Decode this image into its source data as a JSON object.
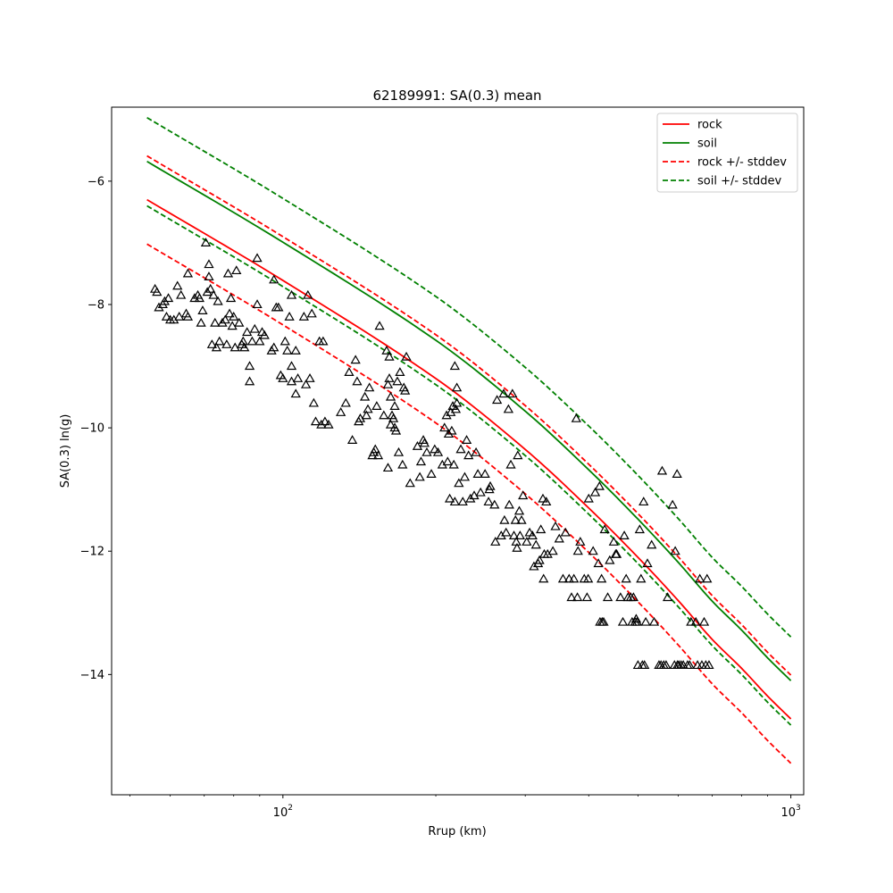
{
  "chart_data": {
    "type": "scatter",
    "title": "62189991: SA(0.3) mean",
    "xlabel": "Rrup (km)",
    "ylabel": "SA(0.3) ln(g)",
    "xscale": "log",
    "xlim": [
      46,
      1060
    ],
    "ylim": [
      -15.95,
      -4.8
    ],
    "x_major_ticks": [
      100,
      1000
    ],
    "x_major_tick_labels": [
      {
        "base": "10",
        "exp": "2"
      },
      {
        "base": "10",
        "exp": "3"
      }
    ],
    "y_ticks": [
      -6,
      -8,
      -10,
      -12,
      -14
    ],
    "y_tick_labels": [
      "−6",
      "−8",
      "−10",
      "−12",
      "−14"
    ],
    "legend": {
      "placement": "top-right",
      "entries": [
        {
          "label": "rock",
          "color": "#ff0000",
          "style": "solid"
        },
        {
          "label": "soil",
          "color": "#008000",
          "style": "solid"
        },
        {
          "label": "rock +/- stddev",
          "color": "#ff0000",
          "style": "dashed"
        },
        {
          "label": "soil +/- stddev",
          "color": "#008000",
          "style": "dashed"
        }
      ]
    },
    "curve_x": [
      54,
      100,
      200,
      300,
      400,
      500,
      600,
      700,
      800,
      900,
      1000
    ],
    "lines": [
      {
        "key": "rock",
        "color": "#ff0000",
        "style": "solid",
        "y": [
          -6.3,
          -7.61,
          -9.2,
          -10.35,
          -11.3,
          -12.1,
          -12.8,
          -13.43,
          -13.9,
          -14.35,
          -14.72
        ]
      },
      {
        "key": "rock_plus",
        "color": "#ff0000",
        "style": "dashed",
        "y": [
          -5.59,
          -6.9,
          -8.49,
          -9.64,
          -10.59,
          -11.39,
          -12.09,
          -12.72,
          -13.19,
          -13.64,
          -14.01
        ]
      },
      {
        "key": "rock_minus",
        "color": "#ff0000",
        "style": "dashed",
        "y": [
          -7.02,
          -8.33,
          -9.92,
          -11.07,
          -12.02,
          -12.82,
          -13.52,
          -14.15,
          -14.62,
          -15.07,
          -15.44
        ]
      },
      {
        "key": "soil",
        "color": "#008000",
        "style": "solid",
        "y": [
          -5.68,
          -6.99,
          -8.58,
          -9.73,
          -10.68,
          -11.48,
          -12.18,
          -12.81,
          -13.28,
          -13.73,
          -14.1
        ]
      },
      {
        "key": "soil_plus",
        "color": "#008000",
        "style": "dashed",
        "y": [
          -4.97,
          -6.28,
          -7.87,
          -9.02,
          -9.97,
          -10.77,
          -11.47,
          -12.1,
          -12.57,
          -13.02,
          -13.39
        ]
      },
      {
        "key": "soil_minus",
        "color": "#008000",
        "style": "dashed",
        "y": [
          -6.4,
          -7.71,
          -9.3,
          -10.45,
          -11.4,
          -12.2,
          -12.9,
          -13.53,
          -14.0,
          -14.45,
          -14.82
        ]
      }
    ],
    "observations": {
      "marker": "triangle",
      "color": "#000000",
      "points": [
        [
          56,
          -7.75
        ],
        [
          56.5,
          -7.8
        ],
        [
          57,
          -8.05
        ],
        [
          58,
          -8.0
        ],
        [
          58.5,
          -7.95
        ],
        [
          59,
          -8.2
        ],
        [
          59.5,
          -7.9
        ],
        [
          60,
          -8.25
        ],
        [
          61,
          -8.25
        ],
        [
          62,
          -7.7
        ],
        [
          62.5,
          -8.2
        ],
        [
          63,
          -7.85
        ],
        [
          64.5,
          -8.15
        ],
        [
          65,
          -8.2
        ],
        [
          65,
          -7.5
        ],
        [
          67,
          -7.9
        ],
        [
          68,
          -7.85
        ],
        [
          68.5,
          -7.9
        ],
        [
          69,
          -8.3
        ],
        [
          69.5,
          -8.1
        ],
        [
          70.5,
          -7.0
        ],
        [
          71,
          -7.8
        ],
        [
          71.5,
          -7.35
        ],
        [
          71.5,
          -7.55
        ],
        [
          72,
          -7.75
        ],
        [
          72.5,
          -8.65
        ],
        [
          73,
          -7.85
        ],
        [
          73.5,
          -8.3
        ],
        [
          74,
          -8.7
        ],
        [
          74.5,
          -7.95
        ],
        [
          75,
          -8.6
        ],
        [
          76,
          -8.3
        ],
        [
          77,
          -8.25
        ],
        [
          77.5,
          -8.65
        ],
        [
          78,
          -7.5
        ],
        [
          78.5,
          -8.15
        ],
        [
          79,
          -7.9
        ],
        [
          79.5,
          -8.35
        ],
        [
          80,
          -8.2
        ],
        [
          80.5,
          -8.7
        ],
        [
          81,
          -7.45
        ],
        [
          82,
          -8.3
        ],
        [
          83,
          -8.65
        ],
        [
          83.5,
          -8.6
        ],
        [
          84,
          -8.7
        ],
        [
          85,
          -8.45
        ],
        [
          86,
          -9.0
        ],
        [
          86,
          -9.25
        ],
        [
          87,
          -8.6
        ],
        [
          88,
          -8.4
        ],
        [
          89,
          -7.25
        ],
        [
          89,
          -8.0
        ],
        [
          90,
          -8.6
        ],
        [
          91,
          -8.45
        ],
        [
          92,
          -8.5
        ],
        [
          95,
          -8.75
        ],
        [
          96,
          -7.6
        ],
        [
          96,
          -8.7
        ],
        [
          97,
          -8.05
        ],
        [
          98,
          -8.05
        ],
        [
          99,
          -9.15
        ],
        [
          100,
          -9.2
        ],
        [
          101,
          -8.6
        ],
        [
          102,
          -8.75
        ],
        [
          103,
          -8.2
        ],
        [
          104,
          -9.0
        ],
        [
          104,
          -9.25
        ],
        [
          104,
          -7.85
        ],
        [
          106,
          -8.75
        ],
        [
          106,
          -9.45
        ],
        [
          107,
          -9.2
        ],
        [
          110,
          -8.2
        ],
        [
          111,
          -9.3
        ],
        [
          112,
          -7.85
        ],
        [
          113,
          -9.2
        ],
        [
          114,
          -8.15
        ],
        [
          115,
          -9.6
        ],
        [
          116,
          -9.9
        ],
        [
          118,
          -8.6
        ],
        [
          119,
          -9.95
        ],
        [
          120,
          -8.6
        ],
        [
          121,
          -9.9
        ],
        [
          123,
          -9.95
        ],
        [
          130,
          -9.75
        ],
        [
          133,
          -9.6
        ],
        [
          135,
          -9.1
        ],
        [
          137,
          -10.2
        ],
        [
          139,
          -8.9
        ],
        [
          140,
          -9.25
        ],
        [
          141,
          -9.9
        ],
        [
          142,
          -9.85
        ],
        [
          145,
          -9.5
        ],
        [
          146,
          -9.8
        ],
        [
          147,
          -9.7
        ],
        [
          148,
          -9.35
        ],
        [
          150,
          -10.45
        ],
        [
          151,
          -10.4
        ],
        [
          152,
          -10.35
        ],
        [
          153,
          -9.65
        ],
        [
          154,
          -10.45
        ],
        [
          155,
          -8.35
        ],
        [
          158,
          -9.8
        ],
        [
          160,
          -8.75
        ],
        [
          161,
          -10.65
        ],
        [
          161,
          -9.3
        ],
        [
          162,
          -9.2
        ],
        [
          162,
          -8.85
        ],
        [
          163,
          -9.95
        ],
        [
          163,
          -9.5
        ],
        [
          164,
          -9.8
        ],
        [
          165,
          -9.85
        ],
        [
          166,
          -10.0
        ],
        [
          166,
          -9.65
        ],
        [
          167,
          -10.05
        ],
        [
          168,
          -9.25
        ],
        [
          169,
          -10.4
        ],
        [
          170,
          -9.1
        ],
        [
          172,
          -10.6
        ],
        [
          173,
          -9.35
        ],
        [
          174,
          -9.4
        ],
        [
          175,
          -8.85
        ],
        [
          178,
          -10.9
        ],
        [
          184,
          -10.3
        ],
        [
          186,
          -10.8
        ],
        [
          187,
          -10.55
        ],
        [
          189,
          -10.2
        ],
        [
          190,
          -10.25
        ],
        [
          192,
          -10.4
        ],
        [
          196,
          -10.75
        ],
        [
          199,
          -10.35
        ],
        [
          202,
          -10.4
        ],
        [
          206,
          -10.6
        ],
        [
          208,
          -10.0
        ],
        [
          210,
          -9.8
        ],
        [
          211,
          -10.55
        ],
        [
          212,
          -10.1
        ],
        [
          213,
          -11.15
        ],
        [
          214,
          -9.75
        ],
        [
          215,
          -10.05
        ],
        [
          216,
          -9.65
        ],
        [
          217,
          -10.6
        ],
        [
          218,
          -9.0
        ],
        [
          218,
          -11.2
        ],
        [
          219,
          -9.7
        ],
        [
          220,
          -9.35
        ],
        [
          220,
          -9.6
        ],
        [
          222,
          -10.9
        ],
        [
          224,
          -10.35
        ],
        [
          226,
          -11.2
        ],
        [
          228,
          -10.8
        ],
        [
          230,
          -10.2
        ],
        [
          232,
          -10.45
        ],
        [
          234,
          -11.15
        ],
        [
          238,
          -11.1
        ],
        [
          240,
          -10.4
        ],
        [
          242,
          -10.75
        ],
        [
          245,
          -11.05
        ],
        [
          250,
          -10.75
        ],
        [
          254,
          -11.2
        ],
        [
          255,
          -11.0
        ],
        [
          256,
          -10.95
        ],
        [
          261,
          -11.25
        ],
        [
          262,
          -11.85
        ],
        [
          264,
          -9.55
        ],
        [
          269,
          -11.75
        ],
        [
          272,
          -9.45
        ],
        [
          273,
          -11.5
        ],
        [
          275,
          -11.7
        ],
        [
          278,
          -9.7
        ],
        [
          279,
          -11.25
        ],
        [
          281,
          -10.6
        ],
        [
          283,
          -9.45
        ],
        [
          285,
          -11.75
        ],
        [
          287,
          -11.5
        ],
        [
          288,
          -11.85
        ],
        [
          289,
          -11.95
        ],
        [
          290,
          -10.45
        ],
        [
          292,
          -11.35
        ],
        [
          293,
          -11.75
        ],
        [
          295,
          -11.5
        ],
        [
          297,
          -11.1
        ],
        [
          302,
          -11.85
        ],
        [
          306,
          -11.7
        ],
        [
          310,
          -11.75
        ],
        [
          312,
          -12.25
        ],
        [
          315,
          -11.9
        ],
        [
          318,
          -12.2
        ],
        [
          320,
          -12.15
        ],
        [
          322,
          -11.65
        ],
        [
          325,
          -11.15
        ],
        [
          326,
          -12.45
        ],
        [
          327,
          -12.05
        ],
        [
          330,
          -11.2
        ],
        [
          332,
          -12.05
        ],
        [
          340,
          -12.0
        ],
        [
          344,
          -11.6
        ],
        [
          350,
          -11.8
        ],
        [
          356,
          -12.45
        ],
        [
          360,
          -11.7
        ],
        [
          366,
          -12.45
        ],
        [
          370,
          -12.75
        ],
        [
          374,
          -12.45
        ],
        [
          378,
          -9.85
        ],
        [
          380,
          -12.75
        ],
        [
          381,
          -12.0
        ],
        [
          385,
          -11.85
        ],
        [
          392,
          -12.45
        ],
        [
          397,
          -12.75
        ],
        [
          399,
          -12.45
        ],
        [
          400,
          -11.15
        ],
        [
          408,
          -12.0
        ],
        [
          412,
          -11.05
        ],
        [
          418,
          -12.2
        ],
        [
          420,
          -10.95
        ],
        [
          421,
          -13.15
        ],
        [
          424,
          -12.45
        ],
        [
          425,
          -13.15
        ],
        [
          428,
          -13.15
        ],
        [
          430,
          -11.65
        ],
        [
          436,
          -12.75
        ],
        [
          440,
          -12.15
        ],
        [
          448,
          -11.85
        ],
        [
          452,
          -12.05
        ],
        [
          454,
          -12.05
        ],
        [
          462,
          -12.75
        ],
        [
          467,
          -13.15
        ],
        [
          470,
          -11.75
        ],
        [
          474,
          -12.45
        ],
        [
          478,
          -12.75
        ],
        [
          484,
          -12.75
        ],
        [
          487,
          -13.15
        ],
        [
          490,
          -12.75
        ],
        [
          494,
          -13.15
        ],
        [
          496,
          -13.1
        ],
        [
          498,
          -13.15
        ],
        [
          500,
          -13.85
        ],
        [
          504,
          -11.65
        ],
        [
          507,
          -12.45
        ],
        [
          510,
          -13.85
        ],
        [
          513,
          -11.2
        ],
        [
          515,
          -13.85
        ],
        [
          518,
          -13.15
        ],
        [
          522,
          -12.2
        ],
        [
          532,
          -11.9
        ],
        [
          538,
          -13.15
        ],
        [
          550,
          -13.85
        ],
        [
          555,
          -13.85
        ],
        [
          558,
          -10.7
        ],
        [
          562,
          -13.85
        ],
        [
          568,
          -13.85
        ],
        [
          572,
          -12.75
        ],
        [
          585,
          -11.25
        ],
        [
          590,
          -13.85
        ],
        [
          592,
          -12.0
        ],
        [
          597,
          -10.75
        ],
        [
          598,
          -13.85
        ],
        [
          602,
          -13.85
        ],
        [
          608,
          -13.85
        ],
        [
          614,
          -13.85
        ],
        [
          626,
          -13.85
        ],
        [
          632,
          -13.85
        ],
        [
          636,
          -13.15
        ],
        [
          650,
          -13.15
        ],
        [
          655,
          -13.85
        ],
        [
          662,
          -12.45
        ],
        [
          668,
          -13.85
        ],
        [
          675,
          -13.15
        ],
        [
          680,
          -13.85
        ],
        [
          684,
          -12.45
        ],
        [
          690,
          -13.85
        ]
      ]
    }
  }
}
